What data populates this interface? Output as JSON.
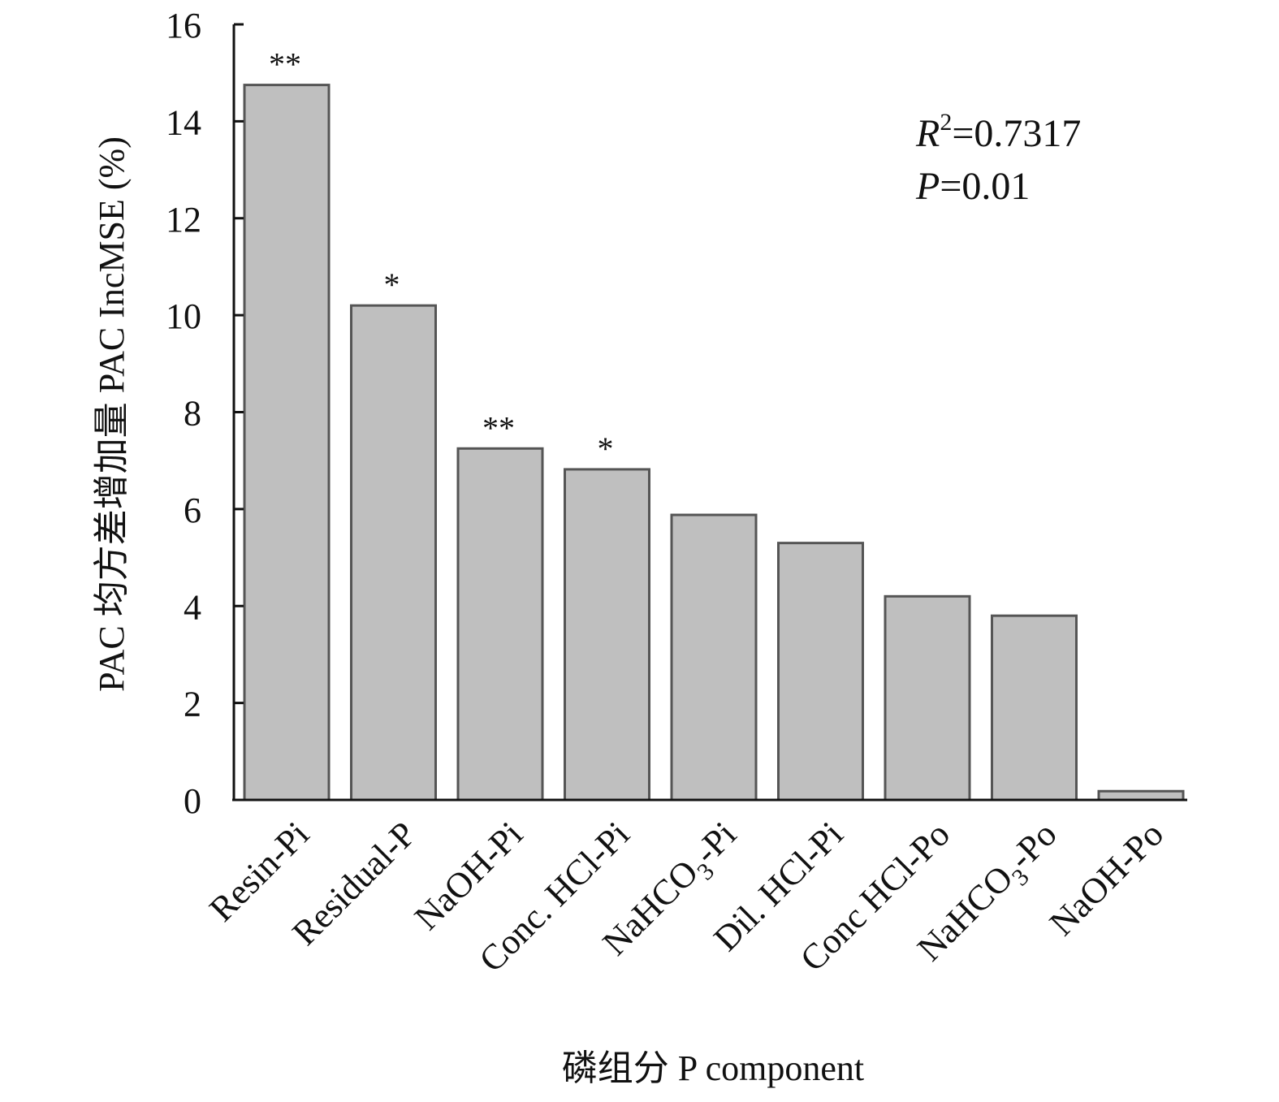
{
  "chart_data": {
    "type": "bar",
    "xlabel": "磷组分 P component",
    "ylabel": "PAC 均方差增加量 PAC IncMSE (%)",
    "ylim": [
      0,
      16
    ],
    "yticks": [
      0,
      2,
      4,
      6,
      8,
      10,
      12,
      14,
      16
    ],
    "categories": [
      {
        "label": "Resin-Pi",
        "base": "Resin-Pi",
        "sub": "",
        "tail": ""
      },
      {
        "label": "Residual-P",
        "base": "Residual-P",
        "sub": "",
        "tail": ""
      },
      {
        "label": "NaOH-Pi",
        "base": "NaOH-Pi",
        "sub": "",
        "tail": ""
      },
      {
        "label": "Conc. HCl-Pi",
        "base": "Conc. HCl-Pi",
        "sub": "",
        "tail": ""
      },
      {
        "label": "NaHCO3-Pi",
        "base": "NaHCO",
        "sub": "3",
        "tail": "-Pi"
      },
      {
        "label": "Dil. HCl-Pi",
        "base": "Dil. HCl-Pi",
        "sub": "",
        "tail": ""
      },
      {
        "label": "Conc HCl-Po",
        "base": "Conc HCl-Po",
        "sub": "",
        "tail": ""
      },
      {
        "label": "NaHCO3-Po",
        "base": "NaHCO",
        "sub": "3",
        "tail": "-Po"
      },
      {
        "label": "NaOH-Po",
        "base": "NaOH-Po",
        "sub": "",
        "tail": ""
      }
    ],
    "values": [
      14.75,
      10.2,
      7.25,
      6.82,
      5.88,
      5.3,
      4.2,
      3.8,
      0.18
    ],
    "significance": [
      "**",
      "*",
      "**",
      "*",
      "",
      "",
      "",
      "",
      ""
    ],
    "annotations": {
      "r2_symbol": "R",
      "r2_sup": "2",
      "r2_value": "=0.7317",
      "p_symbol": "P",
      "p_value": "=0.01"
    },
    "grid": false,
    "legend": "none",
    "bar_color": "#bfbfbf",
    "bar_edge_color": "#555555"
  }
}
